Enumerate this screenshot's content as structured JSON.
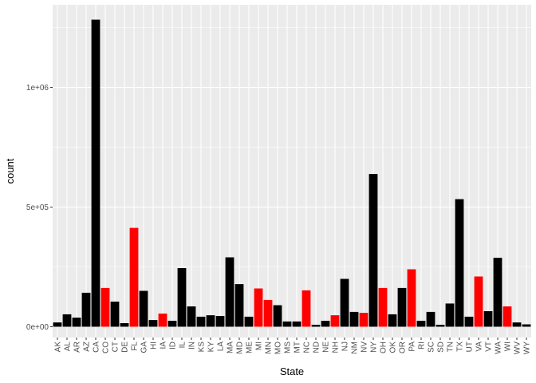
{
  "chart_data": {
    "type": "bar",
    "xlabel": "State",
    "ylabel": "count",
    "ylim": [
      -45000,
      1345000
    ],
    "yticks": [
      {
        "value": 0,
        "label": "0e+00"
      },
      {
        "value": 500000,
        "label": "5e+05"
      },
      {
        "value": 1000000,
        "label": "1e+06"
      }
    ],
    "grid": true,
    "legend": "none",
    "colors": {
      "panel_background": "#ebebeb",
      "grid_major": "#ffffff",
      "default_bar": "#000000",
      "highlight_bar": "#ff0000",
      "tick_text": "#4d4d4d",
      "axis_title": "#000000"
    },
    "categories": [
      "AK",
      "AL",
      "AR",
      "AZ",
      "CA",
      "CO",
      "CT",
      "DE",
      "FL",
      "GA",
      "HI",
      "IA",
      "ID",
      "IL",
      "IN",
      "KS",
      "KY",
      "LA",
      "MA",
      "MD",
      "ME",
      "MI",
      "MN",
      "MO",
      "MS",
      "MT",
      "NC",
      "ND",
      "NE",
      "NH",
      "NJ",
      "NM",
      "NV",
      "NY",
      "OH",
      "OK",
      "OR",
      "PA",
      "RI",
      "SC",
      "SD",
      "TN",
      "TX",
      "UT",
      "VA",
      "VT",
      "WA",
      "WI",
      "WV",
      "WY"
    ],
    "values": [
      18000,
      52000,
      38000,
      142000,
      1283000,
      162000,
      105000,
      15000,
      413000,
      150000,
      28000,
      55000,
      25000,
      245000,
      85000,
      42000,
      48000,
      45000,
      290000,
      178000,
      42000,
      160000,
      112000,
      90000,
      22000,
      22000,
      152000,
      8000,
      25000,
      48000,
      200000,
      62000,
      58000,
      638000,
      162000,
      52000,
      162000,
      240000,
      25000,
      62000,
      8000,
      97000,
      533000,
      42000,
      210000,
      65000,
      288000,
      85000,
      18000,
      10000
    ],
    "highlighted": [
      false,
      false,
      false,
      false,
      false,
      true,
      false,
      false,
      true,
      false,
      false,
      true,
      false,
      false,
      false,
      false,
      false,
      false,
      false,
      false,
      false,
      true,
      true,
      false,
      false,
      false,
      true,
      false,
      false,
      true,
      false,
      false,
      true,
      false,
      true,
      false,
      false,
      true,
      false,
      false,
      false,
      false,
      false,
      false,
      true,
      false,
      false,
      true,
      false,
      false
    ]
  }
}
